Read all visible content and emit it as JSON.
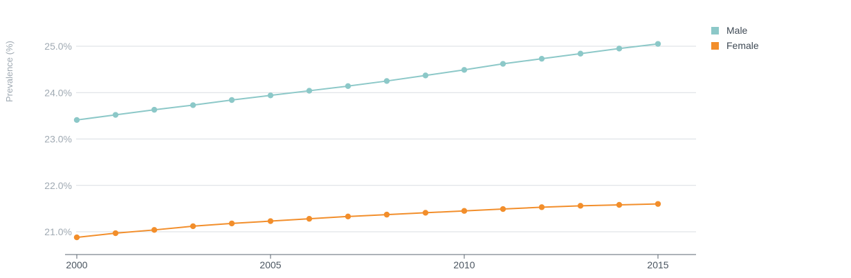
{
  "chart_data": {
    "type": "line",
    "ylabel": "Prevalence (%)",
    "xlabel": "",
    "x": [
      2000,
      2001,
      2002,
      2003,
      2004,
      2005,
      2006,
      2007,
      2008,
      2009,
      2010,
      2011,
      2012,
      2013,
      2014,
      2015
    ],
    "x_ticks": [
      2000,
      2005,
      2010,
      2015
    ],
    "x_tick_labels": [
      "2000",
      "2005",
      "2010",
      "2015"
    ],
    "xlim": [
      2000,
      2015.9
    ],
    "y_ticks": [
      21.0,
      22.0,
      23.0,
      24.0,
      25.0
    ],
    "y_tick_labels": [
      "21.0%",
      "22.0%",
      "23.0%",
      "24.0%",
      "25.0%"
    ],
    "ylim": [
      20.5,
      25.5
    ],
    "grid": true,
    "legend_position": "top-right",
    "series": [
      {
        "name": "Male",
        "color": "#8cc8c8",
        "values": [
          23.41,
          23.52,
          23.63,
          23.73,
          23.84,
          23.94,
          24.04,
          24.14,
          24.25,
          24.37,
          24.49,
          24.62,
          24.73,
          24.84,
          24.95,
          25.05
        ]
      },
      {
        "name": "Female",
        "color": "#f28e2b",
        "values": [
          20.88,
          20.97,
          21.04,
          21.12,
          21.18,
          21.23,
          21.28,
          21.33,
          21.37,
          21.41,
          21.45,
          21.49,
          21.53,
          21.56,
          21.58,
          21.6
        ]
      }
    ]
  }
}
